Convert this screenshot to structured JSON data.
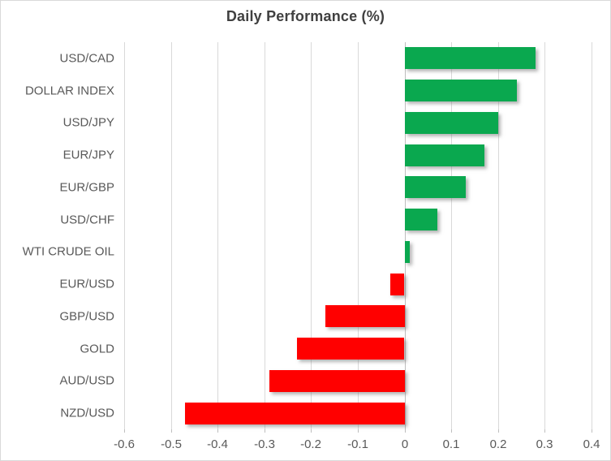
{
  "chart_data": {
    "type": "bar",
    "orientation": "horizontal",
    "title": "Daily Performance (%)",
    "categories": [
      "USD/CAD",
      "DOLLAR INDEX",
      "USD/JPY",
      "EUR/JPY",
      "EUR/GBP",
      "USD/CHF",
      "WTI CRUDE OIL",
      "EUR/USD",
      "GBP/USD",
      "GOLD",
      "AUD/USD",
      "NZD/USD"
    ],
    "values": [
      0.28,
      0.24,
      0.2,
      0.17,
      0.13,
      0.07,
      0.01,
      -0.03,
      -0.17,
      -0.23,
      -0.29,
      -0.47
    ],
    "xlim": [
      -0.6,
      0.4
    ],
    "x_ticks": [
      -0.6,
      -0.5,
      -0.4,
      -0.3,
      -0.2,
      -0.1,
      0,
      0.1,
      0.2,
      0.3,
      0.4
    ],
    "x_tick_labels": [
      "-0.6",
      "-0.5",
      "-0.4",
      "-0.3",
      "-0.2",
      "-0.1",
      "0",
      "0.1",
      "0.2",
      "0.3",
      "0.4"
    ],
    "grid": true,
    "legend": "none",
    "positive_color": "#0aa84f",
    "negative_color": "#ff0000",
    "gridline_color": "#d9d9d9",
    "axis_line_color": "#bfbfbf",
    "label_color": "#595959",
    "title_color": "#404040"
  }
}
